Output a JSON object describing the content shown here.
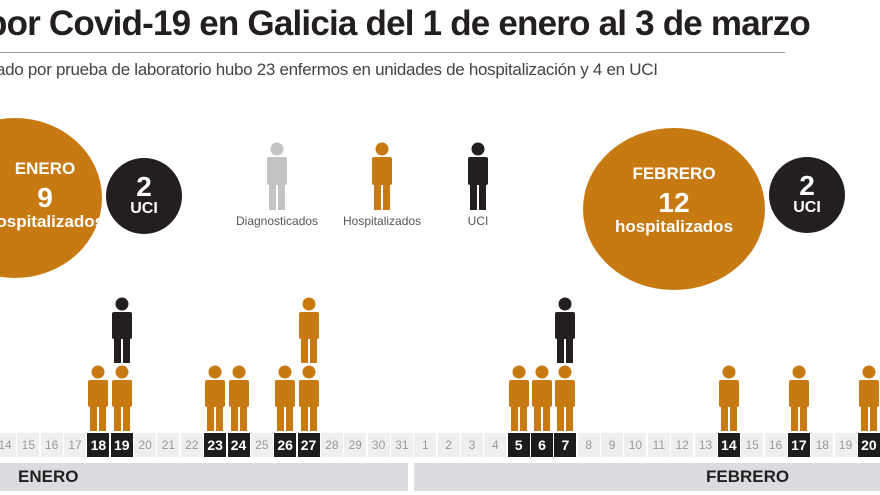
{
  "header": {
    "title": "por Covid-19 en Galicia del 1 de enero al 3 de marzo",
    "subtitle": "ado por prueba de laboratorio hubo 23 enfermos en unidades de hospitalización y 4 en UCI"
  },
  "summary": {
    "enero": {
      "month": "ENERO",
      "hospitalized": "9",
      "hospitalized_label": "hospitalizados",
      "uci": "2",
      "uci_label": "UCI"
    },
    "febrero": {
      "month": "FEBRERO",
      "hospitalized": "12",
      "hospitalized_label": "hospitalizados",
      "uci": "2",
      "uci_label": "UCI"
    }
  },
  "legend": [
    {
      "label": "Diagnosticados",
      "color": "#c3c3c6"
    },
    {
      "label": "Hospitalizados",
      "color": "#c77a12"
    },
    {
      "label": "UCI",
      "color": "#231f20"
    }
  ],
  "months": {
    "enero": "ENERO",
    "febrero": "FEBRERO"
  },
  "colors": {
    "hospitalized": "#c77a12",
    "uci": "#231f20",
    "diagnosed": "#c3c3c6",
    "day_bg": "#efeff1",
    "day_highlight": "#1e1b1c",
    "month_bar": "#dcdce0"
  },
  "chart_data": {
    "type": "pictogram-stacked-bar",
    "title": "por Covid-19 en Galicia del 1 de enero al 3 de marzo",
    "subtitle": "ado por prueba de laboratorio hubo 23 enfermos en unidades de hospitalización y 4 en UCI",
    "legend": [
      "Diagnosticados",
      "Hospitalizados",
      "UCI"
    ],
    "categories": [
      "14 ene",
      "15 ene",
      "16 ene",
      "17 ene",
      "18 ene",
      "19 ene",
      "20 ene",
      "21 ene",
      "22 ene",
      "23 ene",
      "24 ene",
      "25 ene",
      "26 ene",
      "27 ene",
      "28 ene",
      "29 ene",
      "30 ene",
      "31 ene",
      "1 feb",
      "2 feb",
      "3 feb",
      "4 feb",
      "5 feb",
      "6 feb",
      "7 feb",
      "8 feb",
      "9 feb",
      "10 feb",
      "11 feb",
      "12 feb",
      "13 feb",
      "14 feb",
      "15 feb",
      "16 feb",
      "17 feb",
      "18 feb",
      "19 feb",
      "20 feb"
    ],
    "series": [
      {
        "name": "Hospitalizados",
        "values": [
          0,
          0,
          0,
          0,
          1,
          1,
          0,
          0,
          0,
          1,
          1,
          0,
          1,
          2,
          0,
          0,
          0,
          0,
          0,
          0,
          0,
          0,
          1,
          1,
          1,
          0,
          0,
          0,
          0,
          0,
          0,
          1,
          0,
          0,
          1,
          0,
          0,
          1
        ]
      },
      {
        "name": "UCI",
        "values": [
          0,
          0,
          0,
          0,
          0,
          1,
          0,
          0,
          0,
          0,
          0,
          0,
          0,
          0,
          0,
          0,
          0,
          0,
          0,
          0,
          0,
          0,
          0,
          0,
          1,
          0,
          0,
          0,
          0,
          0,
          0,
          0,
          0,
          0,
          0,
          0,
          0,
          0
        ]
      }
    ],
    "monthly_totals": [
      {
        "month": "ENERO",
        "hospitalizados": 9,
        "uci": 2
      },
      {
        "month": "FEBRERO",
        "hospitalizados": 12,
        "uci": 2
      }
    ],
    "xlabel": "",
    "ylabel": ""
  },
  "days": [
    {
      "d": "14",
      "m": "ene",
      "h": 0,
      "u": 0
    },
    {
      "d": "15",
      "m": "ene",
      "h": 0,
      "u": 0
    },
    {
      "d": "16",
      "m": "ene",
      "h": 0,
      "u": 0
    },
    {
      "d": "17",
      "m": "ene",
      "h": 0,
      "u": 0
    },
    {
      "d": "18",
      "m": "ene",
      "h": 1,
      "u": 0
    },
    {
      "d": "19",
      "m": "ene",
      "h": 1,
      "u": 1
    },
    {
      "d": "20",
      "m": "ene",
      "h": 0,
      "u": 0
    },
    {
      "d": "21",
      "m": "ene",
      "h": 0,
      "u": 0
    },
    {
      "d": "22",
      "m": "ene",
      "h": 0,
      "u": 0
    },
    {
      "d": "23",
      "m": "ene",
      "h": 1,
      "u": 0
    },
    {
      "d": "24",
      "m": "ene",
      "h": 1,
      "u": 0
    },
    {
      "d": "25",
      "m": "ene",
      "h": 0,
      "u": 0
    },
    {
      "d": "26",
      "m": "ene",
      "h": 1,
      "u": 0
    },
    {
      "d": "27",
      "m": "ene",
      "h": 2,
      "u": 0
    },
    {
      "d": "28",
      "m": "ene",
      "h": 0,
      "u": 0
    },
    {
      "d": "29",
      "m": "ene",
      "h": 0,
      "u": 0
    },
    {
      "d": "30",
      "m": "ene",
      "h": 0,
      "u": 0
    },
    {
      "d": "31",
      "m": "ene",
      "h": 0,
      "u": 0
    },
    {
      "d": "1",
      "m": "feb",
      "h": 0,
      "u": 0
    },
    {
      "d": "2",
      "m": "feb",
      "h": 0,
      "u": 0
    },
    {
      "d": "3",
      "m": "feb",
      "h": 0,
      "u": 0
    },
    {
      "d": "4",
      "m": "feb",
      "h": 0,
      "u": 0
    },
    {
      "d": "5",
      "m": "feb",
      "h": 1,
      "u": 0
    },
    {
      "d": "6",
      "m": "feb",
      "h": 1,
      "u": 0
    },
    {
      "d": "7",
      "m": "feb",
      "h": 1,
      "u": 1
    },
    {
      "d": "8",
      "m": "feb",
      "h": 0,
      "u": 0
    },
    {
      "d": "9",
      "m": "feb",
      "h": 0,
      "u": 0
    },
    {
      "d": "10",
      "m": "feb",
      "h": 0,
      "u": 0
    },
    {
      "d": "11",
      "m": "feb",
      "h": 0,
      "u": 0
    },
    {
      "d": "12",
      "m": "feb",
      "h": 0,
      "u": 0
    },
    {
      "d": "13",
      "m": "feb",
      "h": 0,
      "u": 0
    },
    {
      "d": "14",
      "m": "feb",
      "h": 1,
      "u": 0
    },
    {
      "d": "15",
      "m": "feb",
      "h": 0,
      "u": 0
    },
    {
      "d": "16",
      "m": "feb",
      "h": 0,
      "u": 0
    },
    {
      "d": "17",
      "m": "feb",
      "h": 1,
      "u": 0
    },
    {
      "d": "18",
      "m": "feb",
      "h": 0,
      "u": 0
    },
    {
      "d": "19",
      "m": "feb",
      "h": 0,
      "u": 0
    },
    {
      "d": "20",
      "m": "feb",
      "h": 1,
      "u": 0
    }
  ]
}
